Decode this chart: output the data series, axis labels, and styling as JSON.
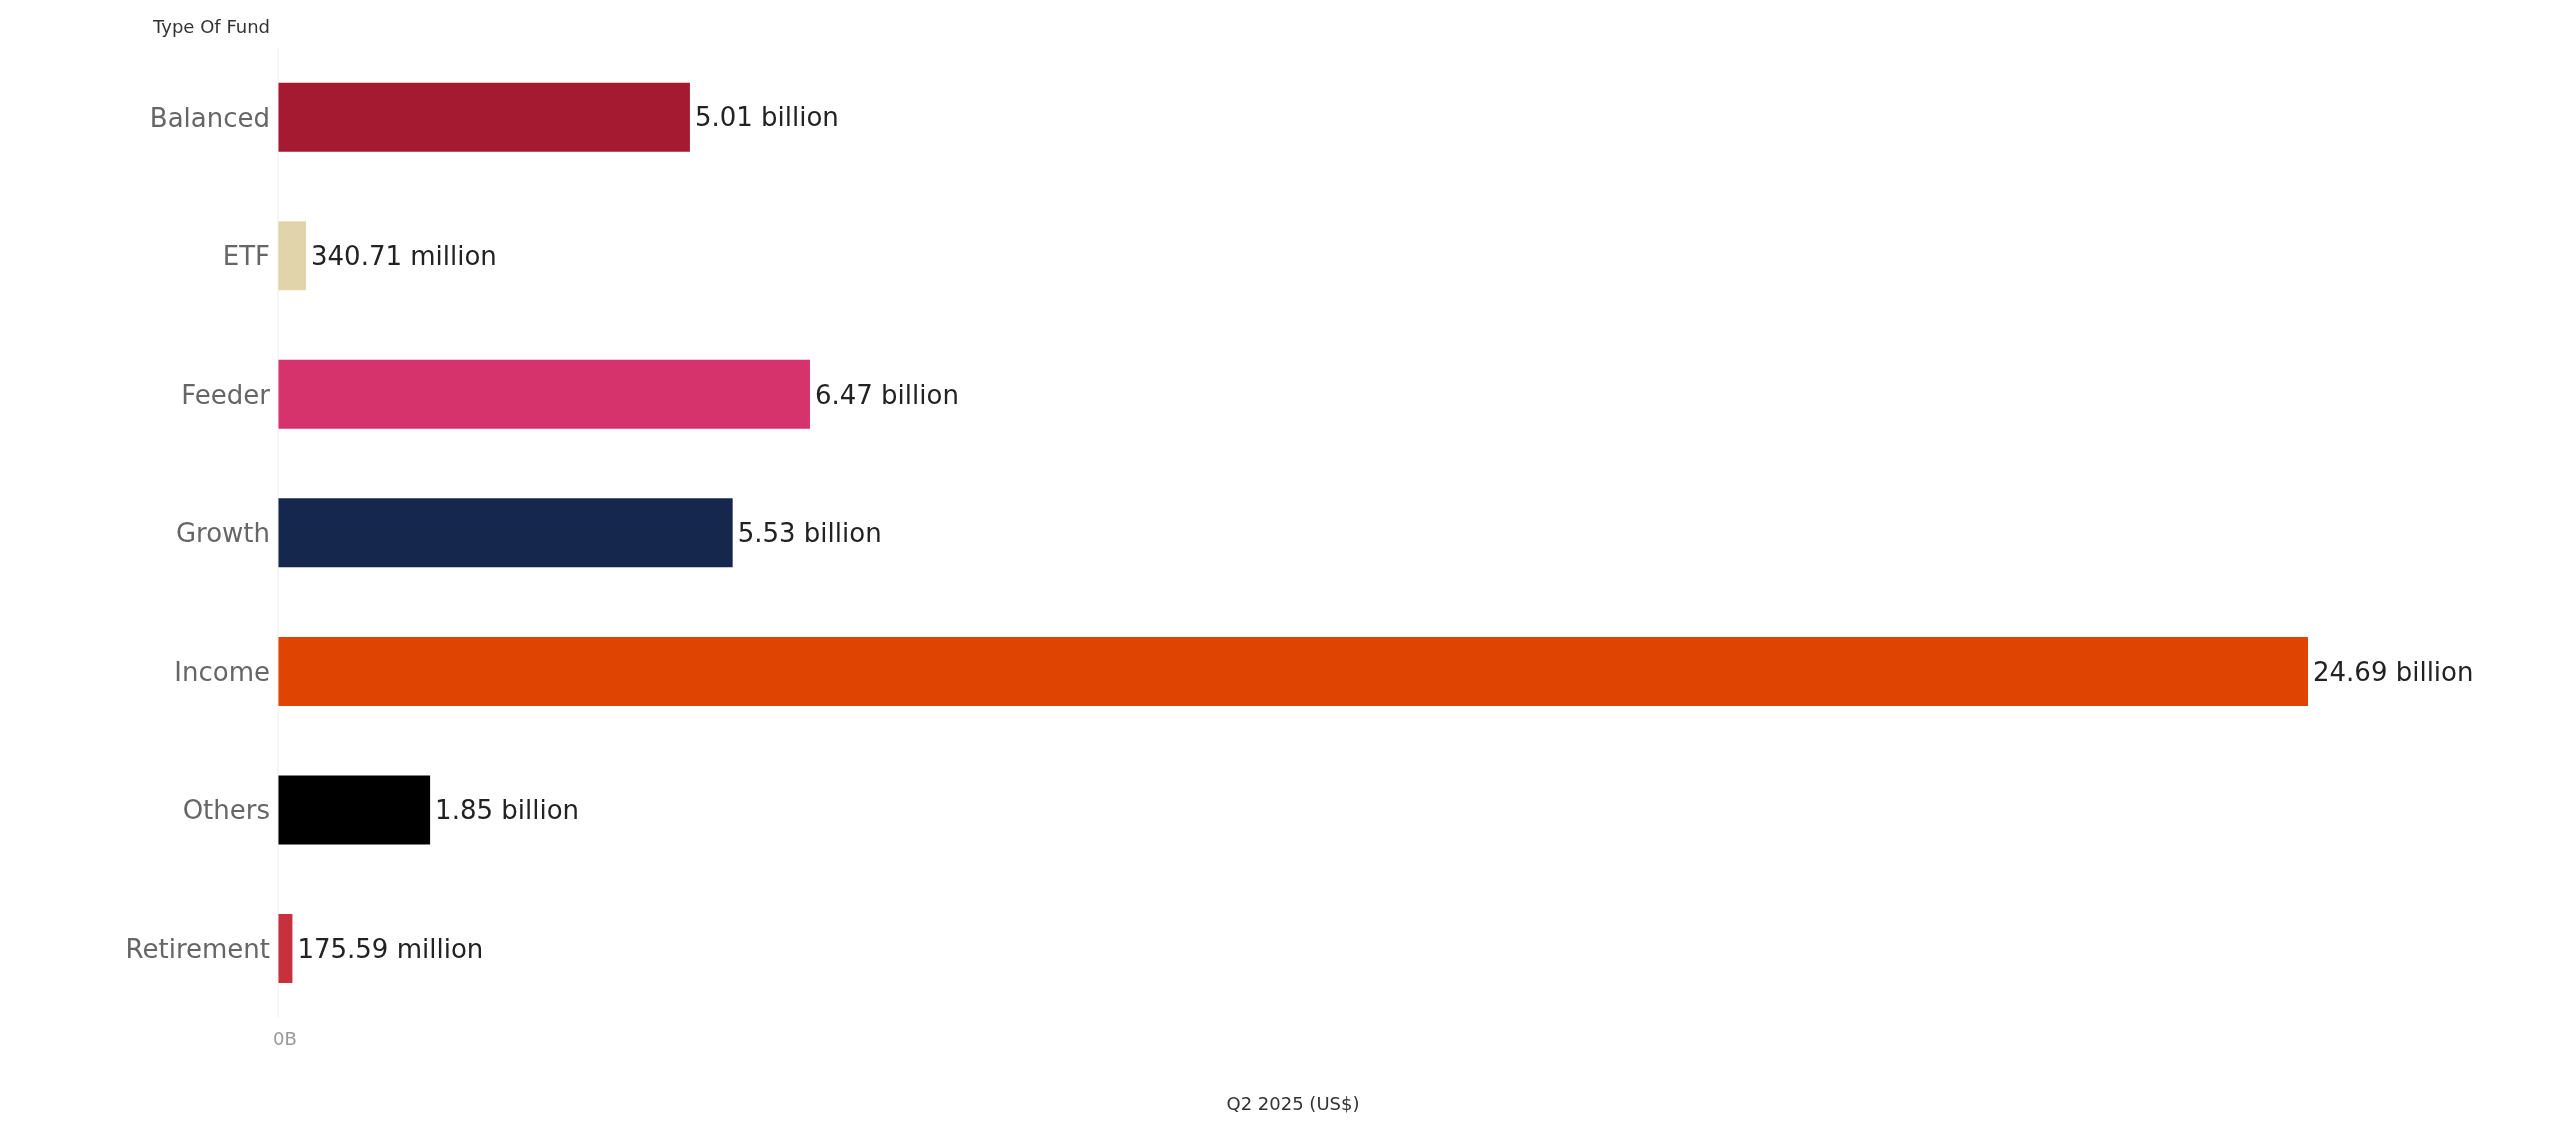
{
  "chart_data": {
    "type": "bar",
    "orientation": "horizontal",
    "xlabel": "Q2 2025 (US$)",
    "ylabel": "Type Of Fund",
    "categories": [
      "Balanced",
      "ETF",
      "Feeder",
      "Growth",
      "Income",
      "Others",
      "Retirement"
    ],
    "values": [
      5010000000,
      340710000,
      6470000000,
      5530000000,
      24690000000,
      1850000000,
      175590000
    ],
    "value_labels": [
      "5.01 billion",
      "340.71 million",
      "6.47 billion",
      "5.53 billion",
      "24.69 billion",
      "1.85 billion",
      "175.59 million"
    ],
    "colors": [
      "#a51931",
      "#e2d4aa",
      "#d6336c",
      "#16274e",
      "#e04403",
      "#000000",
      "#c8303d"
    ],
    "annotations": [
      "0B"
    ],
    "grid": false
  }
}
